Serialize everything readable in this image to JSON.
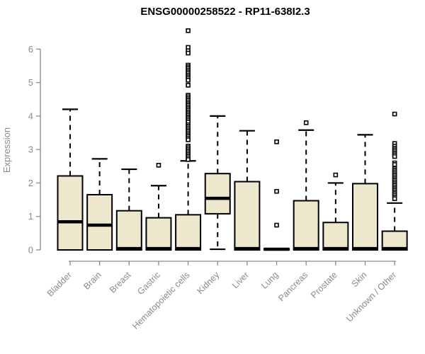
{
  "chart_data": {
    "type": "boxplot",
    "title": "ENSG00000258522 - RP11-638I2.3",
    "ylabel": "Expression",
    "xlabel": "",
    "ylim": [
      0,
      6
    ],
    "y_ticks": [
      0,
      1,
      2,
      3,
      4,
      5,
      6
    ],
    "grid": false,
    "legend": "none",
    "colors": {
      "box_fill": "#ece7cd",
      "box_stroke": "#000000",
      "median": "#000000",
      "whisker": "#000000",
      "outlier_stroke": "#000000",
      "outlier_fill": "#ffffff",
      "axis": "#8a8a8a",
      "tick_label": "#8a8a8a",
      "title": "#000000",
      "background": "#ffffff"
    },
    "boxes": [
      {
        "label": "Bladder",
        "whisker_low": 0,
        "q1": 0,
        "median": 0.84,
        "q3": 2.21,
        "whisker_high": 4.2,
        "outliers": []
      },
      {
        "label": "Brain",
        "whisker_low": 0,
        "q1": 0,
        "median": 0.74,
        "q3": 1.65,
        "whisker_high": 2.72,
        "outliers": []
      },
      {
        "label": "Breast",
        "whisker_low": 0,
        "q1": 0,
        "median": 0.04,
        "q3": 1.17,
        "whisker_high": 2.41,
        "outliers": []
      },
      {
        "label": "Gastric",
        "whisker_low": 0,
        "q1": 0,
        "median": 0.04,
        "q3": 0.96,
        "whisker_high": 1.92,
        "outliers": [
          2.53
        ]
      },
      {
        "label": "Hematopoietic cells",
        "whisker_low": 0,
        "q1": 0,
        "median": 0.04,
        "q3": 1.05,
        "whisker_high": 2.66,
        "outliers": [
          6.55,
          6.05,
          5.95,
          5.88,
          5.52,
          5.47,
          5.42,
          5.37,
          5.32,
          5.27,
          5.22,
          5.17,
          5.12,
          5.07,
          4.92,
          4.62,
          4.57,
          4.52,
          4.47,
          4.42,
          4.37,
          4.32,
          4.27,
          4.22,
          4.17,
          4.12,
          4.07,
          4.02,
          3.97,
          3.92,
          3.87,
          3.82,
          3.74,
          3.69,
          3.64,
          3.59,
          3.54,
          3.49,
          3.44,
          3.39,
          3.34,
          3.29,
          3.1,
          3.05,
          3.0,
          2.95,
          2.9,
          2.85,
          2.8,
          2.75,
          2.7
        ]
      },
      {
        "label": "Kidney",
        "whisker_low": 0.02,
        "q1": 1.08,
        "median": 1.54,
        "q3": 2.28,
        "whisker_high": 4.0,
        "outliers": []
      },
      {
        "label": "Liver",
        "whisker_low": 0,
        "q1": 0,
        "median": 0.04,
        "q3": 2.04,
        "whisker_high": 3.56,
        "outliers": []
      },
      {
        "label": "Lung",
        "whisker_low": 0,
        "q1": 0,
        "median": 0.02,
        "q3": 0.04,
        "whisker_high": 0.04,
        "outliers": [
          3.23,
          1.75,
          0.74
        ]
      },
      {
        "label": "Pancreas",
        "whisker_low": 0,
        "q1": 0,
        "median": 0.04,
        "q3": 1.47,
        "whisker_high": 3.58,
        "outliers": [
          3.8
        ]
      },
      {
        "label": "Prostate",
        "whisker_low": 0,
        "q1": 0,
        "median": 0.04,
        "q3": 0.82,
        "whisker_high": 2.0,
        "outliers": [
          2.24
        ]
      },
      {
        "label": "Skin",
        "whisker_low": 0,
        "q1": 0,
        "median": 0.04,
        "q3": 1.98,
        "whisker_high": 3.44,
        "outliers": []
      },
      {
        "label": "Unknown / Other",
        "whisker_low": 0,
        "q1": 0,
        "median": 0.04,
        "q3": 0.56,
        "whisker_high": 1.4,
        "outliers": [
          4.06,
          3.18,
          3.1,
          3.04,
          2.99,
          2.94,
          2.89,
          2.84,
          2.79,
          2.6,
          2.55,
          2.43,
          2.38,
          2.33,
          2.28,
          2.23,
          2.18,
          2.13,
          2.08,
          2.03,
          1.98,
          1.93,
          1.88,
          1.83,
          1.78,
          1.73,
          1.68,
          1.63,
          1.58,
          1.53
        ]
      }
    ]
  }
}
